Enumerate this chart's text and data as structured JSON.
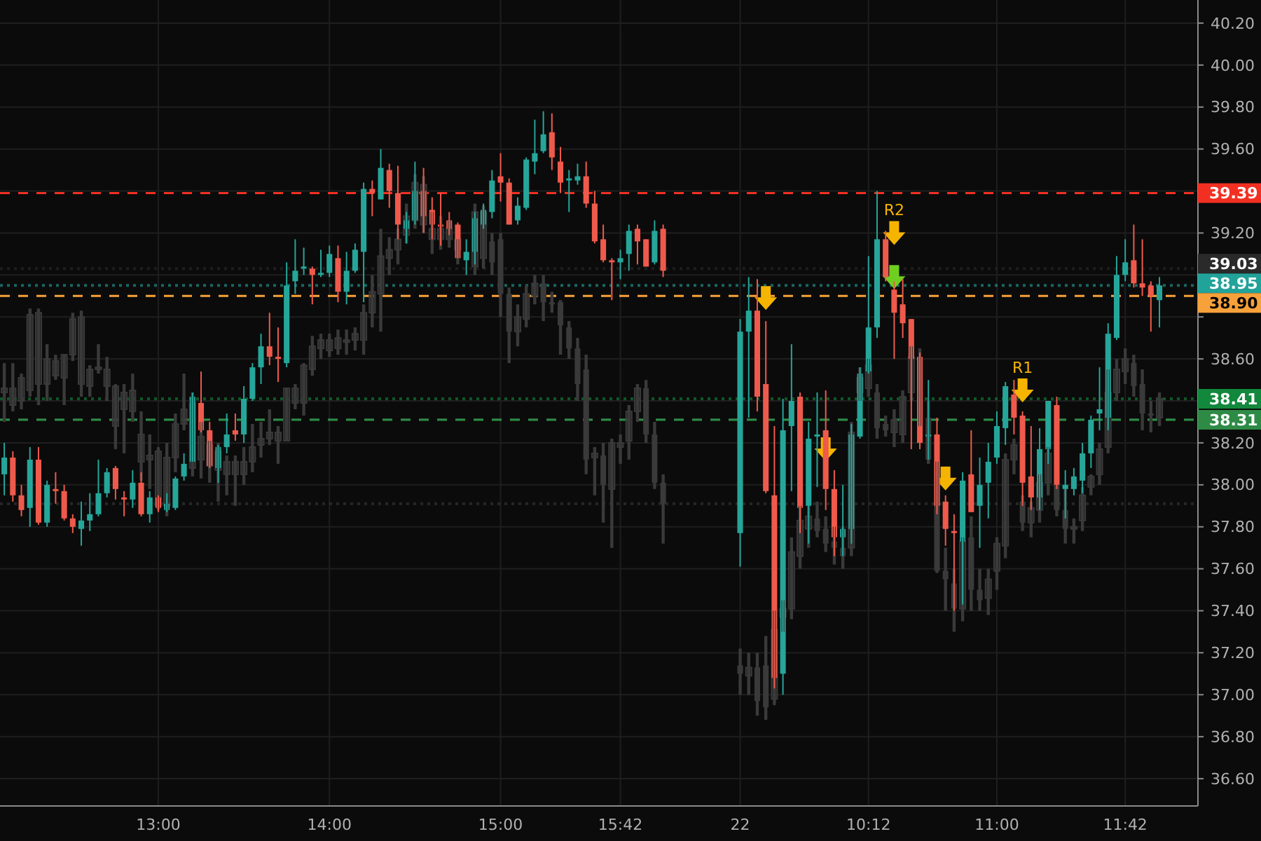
{
  "chart_data": {
    "type": "candlestick",
    "categories": [
      null,
      null,
      null,
      null,
      null,
      null,
      null,
      null,
      null,
      null,
      null,
      null,
      null,
      null,
      null,
      null,
      null,
      null,
      "13:00",
      null,
      null,
      null,
      null,
      null,
      null,
      null,
      null,
      null,
      null,
      null,
      null,
      null,
      null,
      null,
      null,
      null,
      null,
      null,
      "14:00",
      null,
      null,
      null,
      null,
      null,
      null,
      null,
      null,
      null,
      null,
      null,
      null,
      null,
      null,
      null,
      null,
      null,
      null,
      null,
      "15:00",
      null,
      null,
      null,
      null,
      null,
      null,
      null,
      null,
      null,
      null,
      null,
      null,
      null,
      "15:42",
      null,
      null,
      null,
      null,
      null,
      null,
      null,
      null,
      null,
      null,
      null,
      null,
      null,
      "22",
      null,
      null,
      null,
      null,
      null,
      null,
      null,
      null,
      null,
      null,
      null,
      null,
      null,
      null,
      "10:12",
      null,
      null,
      null,
      null,
      null,
      null,
      null,
      null,
      null,
      null,
      null,
      null,
      null,
      null,
      "11:00",
      null,
      null,
      null,
      null,
      null,
      null,
      null,
      null,
      null,
      null,
      null,
      null,
      null,
      null,
      "11:42",
      null,
      null,
      null,
      null,
      null,
      null,
      null,
      null
    ],
    "ylim": [
      36.47,
      40.31
    ],
    "yticks": [
      {
        "value": 36.6,
        "label": "36.60"
      },
      {
        "value": 36.8,
        "label": "36.80"
      },
      {
        "value": 37.0,
        "label": "37.00"
      },
      {
        "value": 37.2,
        "label": "37.20"
      },
      {
        "value": 37.4,
        "label": "37.40"
      },
      {
        "value": 37.6,
        "label": "37.60"
      },
      {
        "value": 37.8,
        "label": "37.80"
      },
      {
        "value": 38.0,
        "label": "38.00"
      },
      {
        "value": 38.2,
        "label": "38.20"
      },
      {
        "value": 38.4,
        "label": null
      },
      {
        "value": 38.6,
        "label": "38.60"
      },
      {
        "value": 38.8,
        "label": null
      },
      {
        "value": 39.0,
        "label": null
      },
      {
        "value": 39.2,
        "label": "39.20"
      },
      {
        "value": 39.4,
        "label": null
      },
      {
        "value": 39.6,
        "label": "39.60"
      },
      {
        "value": 39.8,
        "label": "39.80"
      },
      {
        "value": 40.0,
        "label": "40.00"
      },
      {
        "value": 40.2,
        "label": "40.20"
      }
    ],
    "grid": true,
    "ref_lines": [
      {
        "axis": "y",
        "value": 39.39,
        "label": "39.39",
        "color": "#f23022",
        "line_style": "dashed"
      },
      {
        "axis": "y",
        "value": 39.03,
        "label": "39.03",
        "color": "#2a2a2a",
        "line_style": "dotted"
      },
      {
        "axis": "y",
        "value": 38.95,
        "label": "38.95",
        "color": "#22a39a",
        "line_style": "dotted"
      },
      {
        "axis": "y",
        "value": 38.9,
        "label": "38.90",
        "color": "#f7a13a",
        "line_style": "dashed"
      },
      {
        "axis": "y",
        "value": 38.41,
        "label": "38.41",
        "color": "#12883c",
        "line_style": "dotted"
      },
      {
        "axis": "y",
        "value": 38.31,
        "label": "38.31",
        "color": "#2e8b46",
        "line_style": "dashed"
      },
      {
        "axis": "y",
        "value": 37.91,
        "label": null,
        "color": "#3a3a3a",
        "line_style": "dotted"
      }
    ],
    "series": [
      {
        "color": "#3a3a3a",
        "ohlc": [
          [
            38.44,
            38.58,
            38.3,
            38.46
          ],
          [
            38.38,
            38.58,
            38.35,
            38.46
          ],
          [
            38.4,
            38.53,
            38.36,
            38.51
          ],
          [
            38.45,
            38.84,
            38.42,
            38.81
          ],
          [
            38.48,
            38.84,
            38.38,
            38.82
          ],
          [
            38.48,
            38.67,
            38.4,
            38.6
          ],
          [
            38.52,
            38.62,
            38.5,
            38.59
          ],
          [
            38.51,
            38.62,
            38.38,
            38.62
          ],
          [
            38.62,
            38.82,
            38.59,
            38.79
          ],
          [
            38.48,
            38.83,
            38.42,
            38.8
          ],
          [
            38.47,
            38.57,
            38.42,
            38.55
          ],
          [
            38.55,
            38.67,
            38.53,
            38.56
          ],
          [
            38.47,
            38.61,
            38.4,
            38.55
          ],
          [
            38.28,
            38.48,
            38.17,
            38.47
          ],
          [
            38.36,
            38.48,
            38.15,
            38.44
          ],
          [
            38.35,
            38.53,
            38.3,
            38.45
          ],
          [
            38.11,
            38.35,
            38.02,
            38.24
          ],
          [
            38.12,
            38.24,
            37.98,
            38.14
          ],
          [
            37.9,
            38.18,
            37.88,
            38.16
          ],
          [
            37.9,
            38.2,
            37.85,
            38.13
          ],
          [
            38.13,
            38.34,
            38.06,
            38.29
          ],
          [
            38.29,
            38.53,
            38.26,
            38.36
          ],
          [
            38.08,
            38.44,
            38.04,
            38.39
          ],
          [
            38.12,
            38.3,
            38.03,
            38.23
          ],
          [
            38.09,
            38.21,
            38.01,
            38.19
          ],
          [
            38.07,
            38.2,
            37.92,
            38.16
          ],
          [
            38.05,
            38.14,
            37.95,
            38.11
          ],
          [
            38.05,
            38.14,
            37.9,
            38.11
          ],
          [
            38.05,
            38.18,
            38.0,
            38.11
          ],
          [
            38.11,
            38.29,
            38.06,
            38.18
          ],
          [
            38.19,
            38.3,
            38.13,
            38.22
          ],
          [
            38.22,
            38.36,
            38.19,
            38.25
          ],
          [
            38.21,
            38.28,
            38.1,
            38.25
          ],
          [
            38.21,
            38.46,
            38.21,
            38.46
          ],
          [
            38.39,
            38.48,
            38.36,
            38.46
          ],
          [
            38.39,
            38.58,
            38.33,
            38.57
          ],
          [
            38.55,
            38.71,
            38.52,
            38.66
          ],
          [
            38.65,
            38.72,
            38.6,
            38.69
          ],
          [
            38.64,
            38.72,
            38.61,
            38.69
          ],
          [
            38.65,
            38.74,
            38.62,
            38.7
          ],
          [
            38.68,
            38.74,
            38.62,
            38.69
          ],
          [
            38.69,
            38.75,
            38.64,
            38.72
          ],
          [
            38.69,
            38.86,
            38.62,
            38.82
          ],
          [
            38.82,
            39.0,
            38.75,
            38.92
          ],
          [
            38.91,
            39.22,
            38.73,
            39.09
          ],
          [
            39.08,
            39.18,
            39.0,
            39.12
          ],
          [
            39.12,
            39.22,
            39.05,
            39.17
          ],
          [
            39.19,
            39.34,
            39.15,
            39.28
          ],
          [
            39.26,
            39.48,
            39.22,
            39.44
          ],
          [
            39.24,
            39.47,
            39.2,
            39.43
          ],
          [
            39.17,
            39.3,
            39.1,
            39.22
          ],
          [
            39.17,
            39.28,
            39.12,
            39.22
          ],
          [
            39.17,
            39.26,
            39.13,
            39.22
          ],
          [
            39.12,
            39.17,
            39.05,
            39.17
          ],
          null,
          [
            39.04,
            39.34,
            39.0,
            39.3
          ],
          [
            39.08,
            39.33,
            39.03,
            39.3
          ],
          [
            39.16,
            39.2,
            39.0,
            39.06
          ],
          [
            39.17,
            39.2,
            38.8,
            38.91
          ],
          [
            38.91,
            38.94,
            38.58,
            38.73
          ],
          [
            38.73,
            38.86,
            38.66,
            38.8
          ],
          [
            38.79,
            38.95,
            38.75,
            38.91
          ],
          [
            38.9,
            39.0,
            38.86,
            38.96
          ],
          [
            38.96,
            39.0,
            38.78,
            38.87
          ],
          [
            38.87,
            38.92,
            38.82,
            38.86
          ],
          [
            38.87,
            38.88,
            38.62,
            38.76
          ],
          [
            38.75,
            38.78,
            38.6,
            38.65
          ],
          [
            38.65,
            38.7,
            38.4,
            38.48
          ],
          [
            38.55,
            38.62,
            38.05,
            38.12
          ],
          [
            38.13,
            38.18,
            37.95,
            38.15
          ],
          [
            38.14,
            38.2,
            37.82,
            38.0
          ],
          [
            37.98,
            38.22,
            37.7,
            38.2
          ],
          [
            38.18,
            38.24,
            38.1,
            38.2
          ],
          [
            38.21,
            38.38,
            38.12,
            38.35
          ],
          [
            38.35,
            38.48,
            38.3,
            38.46
          ],
          [
            38.46,
            38.5,
            38.2,
            38.24
          ],
          [
            38.24,
            38.3,
            37.98,
            38.01
          ],
          [
            38.01,
            38.05,
            37.72,
            37.91
          ],
          null,
          null,
          null,
          null,
          null,
          null,
          null,
          null,
          [
            37.14,
            37.22,
            37.0,
            37.1
          ],
          [
            37.09,
            37.2,
            37.0,
            37.13
          ],
          [
            37.13,
            37.2,
            36.9,
            36.97
          ],
          [
            37.14,
            37.28,
            36.88,
            36.94
          ],
          [
            36.98,
            37.4,
            36.95,
            37.31
          ],
          [
            37.37,
            37.45,
            37.3,
            37.41
          ],
          [
            37.41,
            37.75,
            37.36,
            37.68
          ],
          [
            37.66,
            37.9,
            37.6,
            37.83
          ],
          [
            37.79,
            37.9,
            37.7,
            37.85
          ],
          [
            37.84,
            37.92,
            37.75,
            37.78
          ],
          [
            37.79,
            37.85,
            37.68,
            37.72
          ],
          [
            37.73,
            37.8,
            37.62,
            37.7
          ],
          [
            37.7,
            37.8,
            37.6,
            37.66
          ],
          [
            37.7,
            38.3,
            37.66,
            38.25
          ],
          [
            38.44,
            38.56,
            38.4,
            38.51
          ],
          [
            38.46,
            38.6,
            38.42,
            38.57
          ],
          [
            38.44,
            38.48,
            38.22,
            38.27
          ],
          [
            38.29,
            38.33,
            38.23,
            38.26
          ],
          [
            38.25,
            38.36,
            38.18,
            38.31
          ],
          [
            38.24,
            38.45,
            38.2,
            38.42
          ],
          [
            38.44,
            38.66,
            38.4,
            38.61
          ],
          [
            38.6,
            38.65,
            38.28,
            38.32
          ],
          [
            38.32,
            38.4,
            38.1,
            38.12
          ],
          [
            38.11,
            38.11,
            37.58,
            37.59
          ],
          [
            37.59,
            37.7,
            37.4,
            37.55
          ],
          [
            37.53,
            37.6,
            37.3,
            37.41
          ],
          [
            37.41,
            37.75,
            37.35,
            37.73
          ],
          [
            37.75,
            37.85,
            37.4,
            37.5
          ],
          [
            37.5,
            37.6,
            37.4,
            37.45
          ],
          [
            37.46,
            37.6,
            37.38,
            37.55
          ],
          [
            37.59,
            37.75,
            37.5,
            37.72
          ],
          [
            37.71,
            38.15,
            37.65,
            38.12
          ],
          [
            38.12,
            38.22,
            38.05,
            38.19
          ],
          [
            37.92,
            37.95,
            37.78,
            37.82
          ],
          [
            37.82,
            37.92,
            37.75,
            37.89
          ],
          [
            37.88,
            38.05,
            37.82,
            38.01
          ],
          [
            38.01,
            38.18,
            37.95,
            38.15
          ],
          [
            38.0,
            38.0,
            37.85,
            37.88
          ],
          [
            37.88,
            37.98,
            37.72,
            37.79
          ],
          [
            37.79,
            37.84,
            37.72,
            37.8
          ],
          [
            37.83,
            37.99,
            37.78,
            37.95
          ],
          [
            37.99,
            38.05,
            37.95,
            38.04
          ],
          [
            38.05,
            38.2,
            38.0,
            38.17
          ],
          [
            38.18,
            38.55,
            38.15,
            38.44
          ],
          [
            38.44,
            38.6,
            38.4,
            38.55
          ],
          [
            38.54,
            38.65,
            38.48,
            38.6
          ],
          [
            38.58,
            38.62,
            38.42,
            38.47
          ],
          [
            38.48,
            38.55,
            38.26,
            38.34
          ],
          [
            38.34,
            38.4,
            38.25,
            38.33
          ],
          [
            38.32,
            38.44,
            38.28,
            38.41
          ],
          null,
          null,
          null,
          null
        ]
      },
      {
        "colors": [
          "#26a69a",
          "#ef5a4c",
          "#ef5a4c",
          "#26a69a",
          "#ef5a4c",
          "#26a69a",
          "#ef5a4c",
          "#ef5a4c",
          "#ef5a4c",
          "#26a69a",
          "#26a69a",
          "#26a69a",
          "#26a69a",
          "#ef5a4c",
          "#ef5a4c",
          "#26a69a",
          "#ef5a4c",
          "#26a69a",
          "#ef5a4c",
          "#26a69a",
          "#26a69a",
          "#26a69a",
          "#26a69a",
          "#ef5a4c",
          "#ef5a4c",
          "#26a69a",
          "#26a69a",
          "#ef5a4c",
          "#26a69a",
          "#26a69a",
          "#26a69a",
          "#ef5a4c",
          "#ef5a4c",
          "#26a69a",
          "#26a69a",
          "#26a69a",
          "#ef5a4c",
          "#26a69a",
          "#26a69a",
          "#ef5a4c",
          "#26a69a",
          "#26a69a",
          "#26a69a",
          "#ef5a4c",
          "#26a69a",
          "#ef5a4c",
          "#ef5a4c",
          "#26a69a",
          "#26a69a",
          "#ef5a4c",
          "#ef5a4c",
          "#ef5a4c",
          "#ef5a4c",
          "#ef5a4c",
          "#26a69a",
          "#26a69a",
          "#26a69a",
          "#26a69a",
          "#ef5a4c",
          "#ef5a4c",
          "#26a69a",
          "#26a69a",
          "#26a69a",
          "#26a69a",
          "#ef5a4c",
          "#ef5a4c",
          "#26a69a",
          "#26a69a",
          "#ef5a4c",
          "#ef5a4c",
          "#ef5a4c",
          "#ef5a4c",
          "#26a69a",
          "#26a69a",
          "#ef5a4c",
          "#ef5a4c",
          "#26a69a",
          "#ef5a4c",
          null,
          null,
          null,
          null,
          null,
          null,
          null,
          null,
          "#26a69a",
          "#26a69a",
          "#ef5a4c",
          "#ef5a4c",
          "#ef5a4c",
          "#26a69a",
          "#26a69a",
          "#ef5a4c",
          "#26a69a",
          "#26a69a",
          "#ef5a4c",
          "#ef5a4c",
          "#26a69a",
          "#26a69a",
          "#26a69a",
          "#26a69a",
          "#26a69a",
          "#ef5a4c",
          "#ef5a4c",
          "#ef5a4c",
          "#ef5a4c",
          "#ef5a4c",
          "#26a69a",
          "#ef5a4c",
          "#ef5a4c",
          "#ef5a4c",
          "#26a69a",
          "#ef5a4c",
          "#26a69a",
          "#26a69a",
          "#26a69a",
          "#26a69a",
          "#ef5a4c",
          "#ef5a4c",
          "#ef5a4c",
          "#26a69a",
          "#26a69a",
          "#ef5a4c",
          "#26a69a",
          "#26a69a",
          "#26a69a",
          "#26a69a",
          "#26a69a",
          "#26a69a",
          "#26a69a",
          "#26a69a",
          "#ef5a4c",
          "#ef5a4c",
          "#ef5a4c",
          "#26a69a",
          null,
          null,
          null,
          null
        ],
        "ohlc": [
          [
            38.05,
            38.2,
            37.95,
            38.13
          ],
          [
            38.13,
            38.16,
            37.92,
            37.95
          ],
          [
            37.95,
            38.0,
            37.85,
            37.88
          ],
          [
            37.89,
            38.18,
            37.8,
            38.12
          ],
          [
            38.12,
            38.18,
            37.81,
            37.82
          ],
          [
            37.82,
            38.02,
            37.8,
            38.0
          ],
          [
            37.98,
            38.06,
            37.91,
            37.97
          ],
          [
            37.97,
            38.0,
            37.83,
            37.84
          ],
          [
            37.84,
            37.86,
            37.77,
            37.8
          ],
          [
            37.79,
            37.92,
            37.71,
            37.83
          ],
          [
            37.83,
            37.96,
            37.78,
            37.86
          ],
          [
            37.86,
            38.12,
            37.85,
            37.96
          ],
          [
            37.96,
            38.08,
            37.94,
            38.06
          ],
          [
            38.08,
            38.09,
            37.93,
            37.98
          ],
          [
            37.94,
            37.97,
            37.85,
            37.93
          ],
          [
            37.93,
            38.07,
            37.89,
            38.01
          ],
          [
            38.01,
            38.06,
            37.85,
            37.86
          ],
          [
            37.86,
            37.97,
            37.82,
            37.94
          ],
          [
            37.94,
            37.95,
            37.87,
            37.89
          ],
          [
            37.88,
            37.96,
            37.87,
            37.91
          ],
          [
            37.89,
            38.04,
            37.88,
            38.03
          ],
          [
            38.04,
            38.15,
            38.02,
            38.1
          ],
          [
            38.11,
            38.44,
            38.11,
            38.42
          ],
          [
            38.39,
            38.54,
            38.25,
            38.26
          ],
          [
            38.26,
            38.3,
            38.08,
            38.09
          ],
          [
            38.08,
            38.19,
            38.01,
            38.18
          ],
          [
            38.18,
            38.34,
            38.15,
            38.24
          ],
          [
            38.26,
            38.34,
            38.21,
            38.24
          ],
          [
            38.24,
            38.47,
            38.2,
            38.41
          ],
          [
            38.41,
            38.58,
            38.4,
            38.56
          ],
          [
            38.56,
            38.72,
            38.48,
            38.66
          ],
          [
            38.66,
            38.82,
            38.57,
            38.61
          ],
          [
            38.61,
            38.75,
            38.49,
            38.6
          ],
          [
            38.58,
            39.06,
            38.56,
            38.95
          ],
          [
            38.97,
            39.17,
            38.91,
            39.02
          ],
          [
            39.03,
            39.13,
            39.0,
            39.04
          ],
          [
            39.03,
            39.04,
            38.86,
            39.0
          ],
          [
            39.0,
            39.12,
            38.99,
            39.01
          ],
          [
            39.01,
            39.14,
            38.99,
            39.1
          ],
          [
            39.08,
            39.14,
            38.87,
            38.92
          ],
          [
            38.92,
            39.11,
            38.86,
            39.02
          ],
          [
            39.02,
            39.15,
            39.01,
            39.12
          ],
          [
            39.11,
            39.44,
            38.87,
            39.41
          ],
          [
            39.41,
            39.45,
            39.28,
            39.39
          ],
          [
            39.36,
            39.6,
            39.36,
            39.51
          ],
          [
            39.5,
            39.53,
            39.32,
            39.4
          ],
          [
            39.39,
            39.52,
            39.17,
            39.24
          ],
          [
            39.22,
            39.3,
            39.15,
            39.26
          ],
          [
            39.26,
            39.54,
            39.24,
            39.4
          ],
          [
            39.4,
            39.51,
            39.2,
            39.28
          ],
          [
            39.31,
            39.37,
            39.17,
            39.24
          ],
          [
            39.24,
            39.39,
            39.14,
            39.23
          ],
          [
            39.26,
            39.3,
            39.19,
            39.22
          ],
          [
            39.24,
            39.25,
            39.08,
            39.08
          ],
          [
            39.07,
            39.17,
            39.0,
            39.11
          ],
          [
            39.11,
            39.3,
            39.05,
            39.27
          ],
          [
            39.24,
            39.34,
            39.22,
            39.31
          ],
          [
            39.3,
            39.5,
            39.27,
            39.45
          ],
          [
            39.47,
            39.58,
            39.35,
            39.44
          ],
          [
            39.44,
            39.46,
            39.24,
            39.24
          ],
          [
            39.26,
            39.37,
            39.24,
            39.33
          ],
          [
            39.32,
            39.56,
            39.31,
            39.55
          ],
          [
            39.54,
            39.74,
            39.48,
            39.58
          ],
          [
            39.59,
            39.78,
            39.58,
            39.67
          ],
          [
            39.68,
            39.77,
            39.5,
            39.56
          ],
          [
            39.54,
            39.61,
            39.39,
            39.44
          ],
          [
            39.45,
            39.5,
            39.3,
            39.46
          ],
          [
            39.45,
            39.53,
            39.43,
            39.47
          ],
          [
            39.47,
            39.54,
            39.32,
            39.34
          ],
          [
            39.34,
            39.4,
            39.15,
            39.16
          ],
          [
            39.17,
            39.24,
            39.06,
            39.07
          ],
          [
            39.07,
            39.08,
            38.88,
            39.06
          ],
          [
            39.06,
            39.12,
            38.98,
            39.08
          ],
          [
            39.1,
            39.24,
            39.02,
            39.21
          ],
          [
            39.22,
            39.24,
            39.05,
            39.16
          ],
          [
            39.17,
            39.17,
            39.04,
            39.04
          ],
          [
            39.06,
            39.26,
            39.05,
            39.21
          ],
          [
            39.22,
            39.24,
            38.99,
            39.02
          ],
          null,
          null,
          null,
          null,
          null,
          null,
          null,
          null,
          [
            37.77,
            38.79,
            37.61,
            38.73
          ],
          [
            38.73,
            38.99,
            38.32,
            38.83
          ],
          [
            38.83,
            38.98,
            38.35,
            38.42
          ],
          [
            38.48,
            38.78,
            37.96,
            37.97
          ],
          [
            37.95,
            38.28,
            37.03,
            37.08
          ],
          [
            37.1,
            38.41,
            37.0,
            38.26
          ],
          [
            38.28,
            38.67,
            37.97,
            38.4
          ],
          [
            38.42,
            38.44,
            37.77,
            37.89
          ],
          [
            37.9,
            38.3,
            37.72,
            38.22
          ],
          [
            38.23,
            38.44,
            37.99,
            38.24
          ],
          [
            38.26,
            38.45,
            37.88,
            37.98
          ],
          [
            37.98,
            38.07,
            37.66,
            37.75
          ],
          [
            37.75,
            38.0,
            37.66,
            37.79
          ],
          [
            37.79,
            38.29,
            37.72,
            38.24
          ],
          [
            38.23,
            38.56,
            38.22,
            38.53
          ],
          [
            38.54,
            39.09,
            38.53,
            38.75
          ],
          [
            38.75,
            39.4,
            38.7,
            39.17
          ],
          [
            39.17,
            39.21,
            38.97,
            38.99
          ],
          [
            38.93,
            38.97,
            38.6,
            38.82
          ],
          [
            38.86,
            38.98,
            38.7,
            38.77
          ],
          [
            38.79,
            38.79,
            38.17,
            38.6
          ],
          [
            38.61,
            38.63,
            38.17,
            38.2
          ],
          [
            38.23,
            38.5,
            38.12,
            38.24
          ],
          [
            38.24,
            38.32,
            37.86,
            37.9
          ],
          [
            37.92,
            37.95,
            37.71,
            37.79
          ],
          [
            37.78,
            37.86,
            37.4,
            37.77
          ],
          [
            37.73,
            38.06,
            37.43,
            38.02
          ],
          [
            38.05,
            38.26,
            37.87,
            37.87
          ],
          [
            37.9,
            38.13,
            37.7,
            38.0
          ],
          [
            38.01,
            38.2,
            37.84,
            38.11
          ],
          [
            38.13,
            38.35,
            38.1,
            38.28
          ],
          [
            38.27,
            38.49,
            38.19,
            38.47
          ],
          [
            38.43,
            38.5,
            38.24,
            38.32
          ],
          [
            38.33,
            38.35,
            37.9,
            38.01
          ],
          [
            38.04,
            38.28,
            37.88,
            37.94
          ],
          [
            37.94,
            38.27,
            37.88,
            38.17
          ],
          [
            38.17,
            38.4,
            38.1,
            38.4
          ],
          [
            38.38,
            38.42,
            37.98,
            38.0
          ],
          [
            37.98,
            38.07,
            37.84,
            38.0
          ],
          [
            37.98,
            38.08,
            37.95,
            38.04
          ],
          [
            38.02,
            38.2,
            37.96,
            38.15
          ],
          [
            38.15,
            38.33,
            38.08,
            38.31
          ],
          [
            38.34,
            38.56,
            38.26,
            38.36
          ],
          [
            38.32,
            38.77,
            38.26,
            38.72
          ],
          [
            38.7,
            39.09,
            38.69,
            39.0
          ],
          [
            39.0,
            39.17,
            38.97,
            39.06
          ],
          [
            39.07,
            39.24,
            38.94,
            38.96
          ],
          [
            38.96,
            39.17,
            38.9,
            38.94
          ],
          [
            38.95,
            38.97,
            38.73,
            38.9
          ],
          [
            38.88,
            38.99,
            38.75,
            38.95
          ],
          null,
          null,
          null,
          null
        ]
      },
      {
        "type": "scatter",
        "marker": "triangle",
        "color": "#f5b400",
        "values": [
          null,
          null,
          null,
          null,
          null,
          null,
          null,
          null,
          null,
          null,
          null,
          null,
          null,
          null,
          null,
          null,
          null,
          null,
          null,
          null,
          null,
          null,
          null,
          null,
          null,
          null,
          null,
          null,
          null,
          null,
          null,
          null,
          null,
          null,
          null,
          null,
          null,
          null,
          null,
          null,
          null,
          null,
          null,
          null,
          null,
          null,
          null,
          null,
          null,
          null,
          null,
          null,
          null,
          null,
          null,
          null,
          null,
          null,
          null,
          null,
          null,
          null,
          null,
          null,
          null,
          null,
          null,
          null,
          null,
          null,
          null,
          null,
          null,
          null,
          null,
          null,
          null,
          null,
          null,
          null,
          null,
          null,
          null,
          null,
          null,
          null,
          null,
          null,
          null,
          38.88,
          null,
          null,
          null,
          null,
          null,
          null,
          38.16,
          null,
          null,
          null,
          null,
          null,
          null,
          null,
          39.19,
          null,
          null,
          null,
          null,
          null,
          38.02,
          null,
          null,
          null,
          null,
          null,
          null,
          null,
          null,
          38.44,
          null,
          null,
          null,
          null,
          null,
          null,
          null,
          null,
          null,
          null,
          null,
          null,
          null,
          null,
          null,
          null,
          null,
          null,
          null,
          null
        ],
        "value_labels": [
          null,
          null,
          null,
          null,
          null,
          null,
          null,
          null,
          null,
          null,
          null,
          null,
          null,
          null,
          null,
          null,
          null,
          null,
          null,
          null,
          null,
          null,
          null,
          null,
          null,
          null,
          null,
          null,
          null,
          null,
          null,
          null,
          null,
          null,
          null,
          null,
          null,
          null,
          null,
          null,
          null,
          null,
          null,
          null,
          null,
          null,
          null,
          null,
          null,
          null,
          null,
          null,
          null,
          null,
          null,
          null,
          null,
          null,
          null,
          null,
          null,
          null,
          null,
          null,
          null,
          null,
          null,
          null,
          null,
          null,
          null,
          null,
          null,
          null,
          null,
          null,
          null,
          null,
          null,
          null,
          null,
          null,
          null,
          null,
          null,
          null,
          null,
          null,
          null,
          null,
          null,
          null,
          null,
          null,
          null,
          null,
          null,
          null,
          null,
          null,
          null,
          null,
          null,
          null,
          "R2",
          null,
          null,
          null,
          null,
          null,
          null,
          null,
          null,
          null,
          null,
          null,
          null,
          null,
          null,
          "R1",
          null,
          null,
          null,
          null,
          null,
          null,
          null,
          null,
          null,
          null,
          null,
          null,
          null,
          null,
          null,
          null,
          null,
          null,
          null,
          null
        ]
      },
      {
        "type": "scatter",
        "marker": "triangle",
        "color": "#6fcf1f",
        "values": [
          null,
          null,
          null,
          null,
          null,
          null,
          null,
          null,
          null,
          null,
          null,
          null,
          null,
          null,
          null,
          null,
          null,
          null,
          null,
          null,
          null,
          null,
          null,
          null,
          null,
          null,
          null,
          null,
          null,
          null,
          null,
          null,
          null,
          null,
          null,
          null,
          null,
          null,
          null,
          null,
          null,
          null,
          null,
          null,
          null,
          null,
          null,
          null,
          null,
          null,
          null,
          null,
          null,
          null,
          null,
          null,
          null,
          null,
          null,
          null,
          null,
          null,
          null,
          null,
          null,
          null,
          null,
          null,
          null,
          null,
          null,
          null,
          null,
          null,
          null,
          null,
          null,
          null,
          null,
          null,
          null,
          null,
          null,
          null,
          null,
          null,
          null,
          null,
          null,
          null,
          null,
          null,
          null,
          null,
          null,
          null,
          null,
          null,
          null,
          null,
          null,
          null,
          null,
          null,
          38.98,
          null,
          null,
          null,
          null,
          null,
          null,
          null,
          null,
          null,
          null,
          null,
          null,
          null,
          null,
          null,
          null,
          null,
          null,
          null,
          null,
          null,
          null,
          null,
          null,
          null,
          null,
          null,
          null,
          null,
          null,
          null,
          null,
          null,
          null,
          null
        ]
      }
    ]
  }
}
